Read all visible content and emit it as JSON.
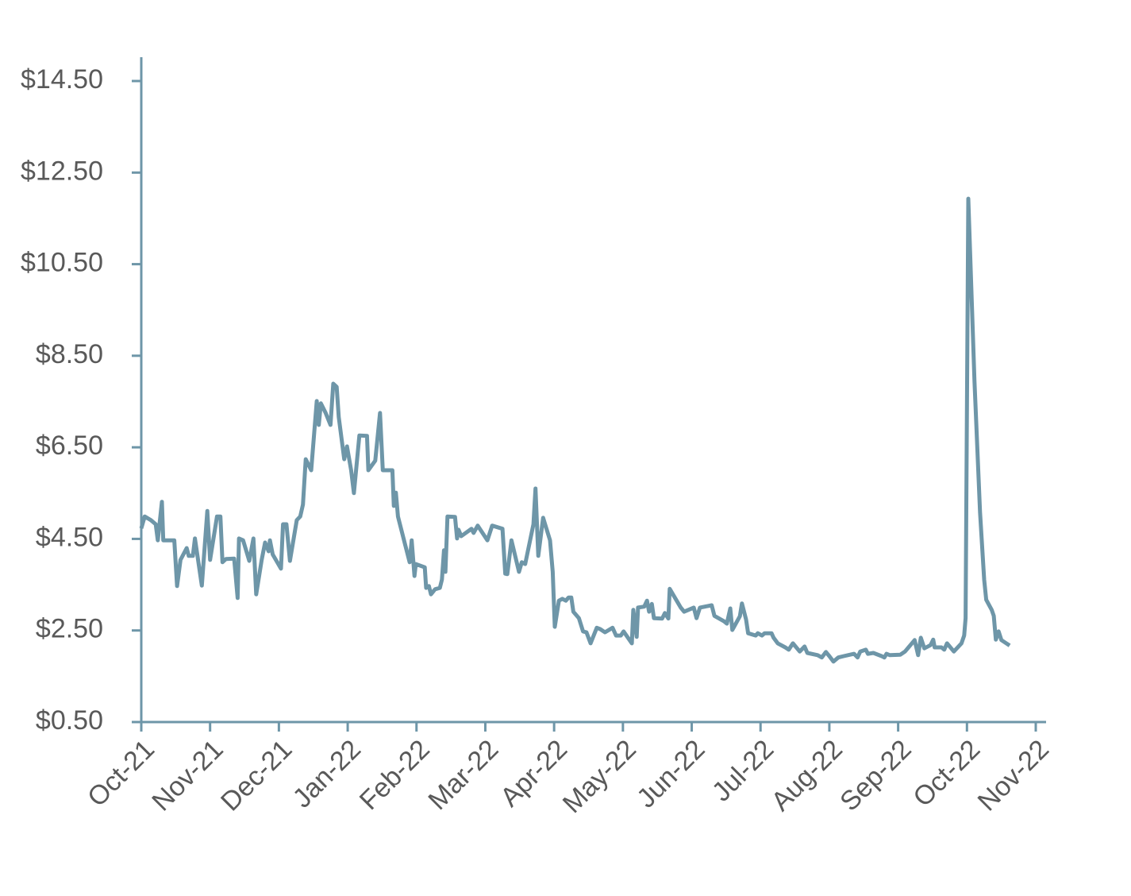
{
  "chart_data": {
    "type": "line",
    "color": "#6e96a8",
    "xlim": [
      0,
      13
    ],
    "xticks": [
      {
        "value": 0,
        "label": "Oct-21"
      },
      {
        "value": 1,
        "label": "Nov-21"
      },
      {
        "value": 2,
        "label": "Dec-21"
      },
      {
        "value": 3,
        "label": "Jan-22"
      },
      {
        "value": 4,
        "label": "Feb-22"
      },
      {
        "value": 5,
        "label": "Mar-22"
      },
      {
        "value": 6,
        "label": "Apr-22"
      },
      {
        "value": 7,
        "label": "May-22"
      },
      {
        "value": 8,
        "label": "Jun-22"
      },
      {
        "value": 9,
        "label": "Jul-22"
      },
      {
        "value": 10,
        "label": "Aug-22"
      },
      {
        "value": 11,
        "label": "Sep-22"
      },
      {
        "value": 12,
        "label": "Oct-22"
      },
      {
        "value": 13,
        "label": "Nov-22"
      }
    ],
    "ylim": [
      0.5,
      14.5
    ],
    "yticks": [
      {
        "value": 0.5,
        "label": "$0.50"
      },
      {
        "value": 2.5,
        "label": "$2.50"
      },
      {
        "value": 4.5,
        "label": "$4.50"
      },
      {
        "value": 6.5,
        "label": "$6.50"
      },
      {
        "value": 8.5,
        "label": "$8.50"
      },
      {
        "value": 10.5,
        "label": "$10.50"
      },
      {
        "value": 12.5,
        "label": "$12.50"
      },
      {
        "value": 14.5,
        "label": "$14.50"
      }
    ],
    "grid": false,
    "x": [
      0,
      0.05,
      0.14,
      0.21,
      0.24,
      0.3,
      0.32,
      0.48,
      0.52,
      0.57,
      0.66,
      0.69,
      0.75,
      0.78,
      0.88,
      0.96,
      1.0,
      1.1,
      1.15,
      1.18,
      1.23,
      1.35,
      1.4,
      1.42,
      1.48,
      1.57,
      1.63,
      1.67,
      1.75,
      1.8,
      1.85,
      1.87,
      1.91,
      2.03,
      2.06,
      2.11,
      2.16,
      2.26,
      2.31,
      2.35,
      2.39,
      2.47,
      2.55,
      2.58,
      2.61,
      2.68,
      2.75,
      2.79,
      2.84,
      2.87,
      2.95,
      2.99,
      3.05,
      3.09,
      3.17,
      3.28,
      3.3,
      3.4,
      3.47,
      3.51,
      3.65,
      3.67,
      3.7,
      3.73,
      3.9,
      3.93,
      3.97,
      3.99,
      4.12,
      4.14,
      4.18,
      4.21,
      4.27,
      4.34,
      4.37,
      4.4,
      4.42,
      4.45,
      4.56,
      4.59,
      4.61,
      4.65,
      4.8,
      4.83,
      4.89,
      5.03,
      5.1,
      5.25,
      5.29,
      5.32,
      5.38,
      5.49,
      5.53,
      5.58,
      5.7,
      5.73,
      5.77,
      5.84,
      5.94,
      5.98,
      6.01,
      6.07,
      6.12,
      6.17,
      6.21,
      6.25,
      6.28,
      6.36,
      6.42,
      6.47,
      6.53,
      6.62,
      6.67,
      6.74,
      6.85,
      6.9,
      6.97,
      7.01,
      7.13,
      7.15,
      7.2,
      7.22,
      7.31,
      7.35,
      7.38,
      7.42,
      7.45,
      7.57,
      7.61,
      7.66,
      7.68,
      7.84,
      7.89,
      8.03,
      8.07,
      8.12,
      8.29,
      8.33,
      8.47,
      8.51,
      8.56,
      8.59,
      8.7,
      8.73,
      8.79,
      8.82,
      8.93,
      8.96,
      9.02,
      9.06,
      9.16,
      9.19,
      9.25,
      9.36,
      9.41,
      9.47,
      9.57,
      9.64,
      9.68,
      9.83,
      9.89,
      9.95,
      10.0,
      10.06,
      10.13,
      10.21,
      10.36,
      10.41,
      10.45,
      10.53,
      10.56,
      10.64,
      10.76,
      10.8,
      10.83,
      10.88,
      11.03,
      11.1,
      11.24,
      11.29,
      11.33,
      11.38,
      11.47,
      11.51,
      11.53,
      11.63,
      11.67,
      11.71,
      11.81,
      11.92,
      11.96,
      11.98,
      12.02,
      12.11,
      12.19,
      12.25,
      12.28,
      12.36,
      12.39,
      12.42,
      12.46,
      12.5,
      12.62
    ],
    "values": [
      4.73,
      4.99,
      4.91,
      4.82,
      4.47,
      5.31,
      4.47,
      4.47,
      3.47,
      4.04,
      4.3,
      4.13,
      4.13,
      4.51,
      3.48,
      5.11,
      4.04,
      4.99,
      4.99,
      3.99,
      4.06,
      4.07,
      3.21,
      4.51,
      4.47,
      4.02,
      4.51,
      3.29,
      4.04,
      4.42,
      4.23,
      4.47,
      4.16,
      3.85,
      4.82,
      4.82,
      4.02,
      4.91,
      4.99,
      5.25,
      6.24,
      6.0,
      7.51,
      6.99,
      7.46,
      7.25,
      6.99,
      7.89,
      7.82,
      7.16,
      6.24,
      6.52,
      6.0,
      5.5,
      6.76,
      6.75,
      6.0,
      6.21,
      7.25,
      6.0,
      6.0,
      5.22,
      5.51,
      4.99,
      3.99,
      4.47,
      3.69,
      3.95,
      3.88,
      3.43,
      3.47,
      3.29,
      3.4,
      3.43,
      3.61,
      4.25,
      3.78,
      4.99,
      4.98,
      4.51,
      4.7,
      4.56,
      4.72,
      4.63,
      4.79,
      4.47,
      4.79,
      4.72,
      3.74,
      3.73,
      4.47,
      3.78,
      3.99,
      3.95,
      4.82,
      5.6,
      4.13,
      4.96,
      4.47,
      3.78,
      2.58,
      3.15,
      3.19,
      3.15,
      3.22,
      3.22,
      2.91,
      2.77,
      2.48,
      2.46,
      2.22,
      2.56,
      2.53,
      2.46,
      2.56,
      2.39,
      2.39,
      2.48,
      2.22,
      2.95,
      2.36,
      3.0,
      3.02,
      3.15,
      2.91,
      3.08,
      2.77,
      2.76,
      2.88,
      2.76,
      3.41,
      3.0,
      2.91,
      3.0,
      2.77,
      3.0,
      3.05,
      2.82,
      2.7,
      2.65,
      2.98,
      2.51,
      2.81,
      3.09,
      2.74,
      2.44,
      2.39,
      2.44,
      2.39,
      2.44,
      2.44,
      2.34,
      2.22,
      2.13,
      2.08,
      2.22,
      2.04,
      2.15,
      2.01,
      1.96,
      1.91,
      2.03,
      1.94,
      1.82,
      1.91,
      1.94,
      1.99,
      1.91,
      2.04,
      2.08,
      1.99,
      2.01,
      1.94,
      1.91,
      1.99,
      1.96,
      1.97,
      2.04,
      2.29,
      1.96,
      2.34,
      2.11,
      2.18,
      2.3,
      2.13,
      2.13,
      2.08,
      2.22,
      2.04,
      2.22,
      2.39,
      2.77,
      11.93,
      7.94,
      5.08,
      3.61,
      3.17,
      2.95,
      2.82,
      2.3,
      2.48,
      2.29,
      2.17
    ]
  }
}
